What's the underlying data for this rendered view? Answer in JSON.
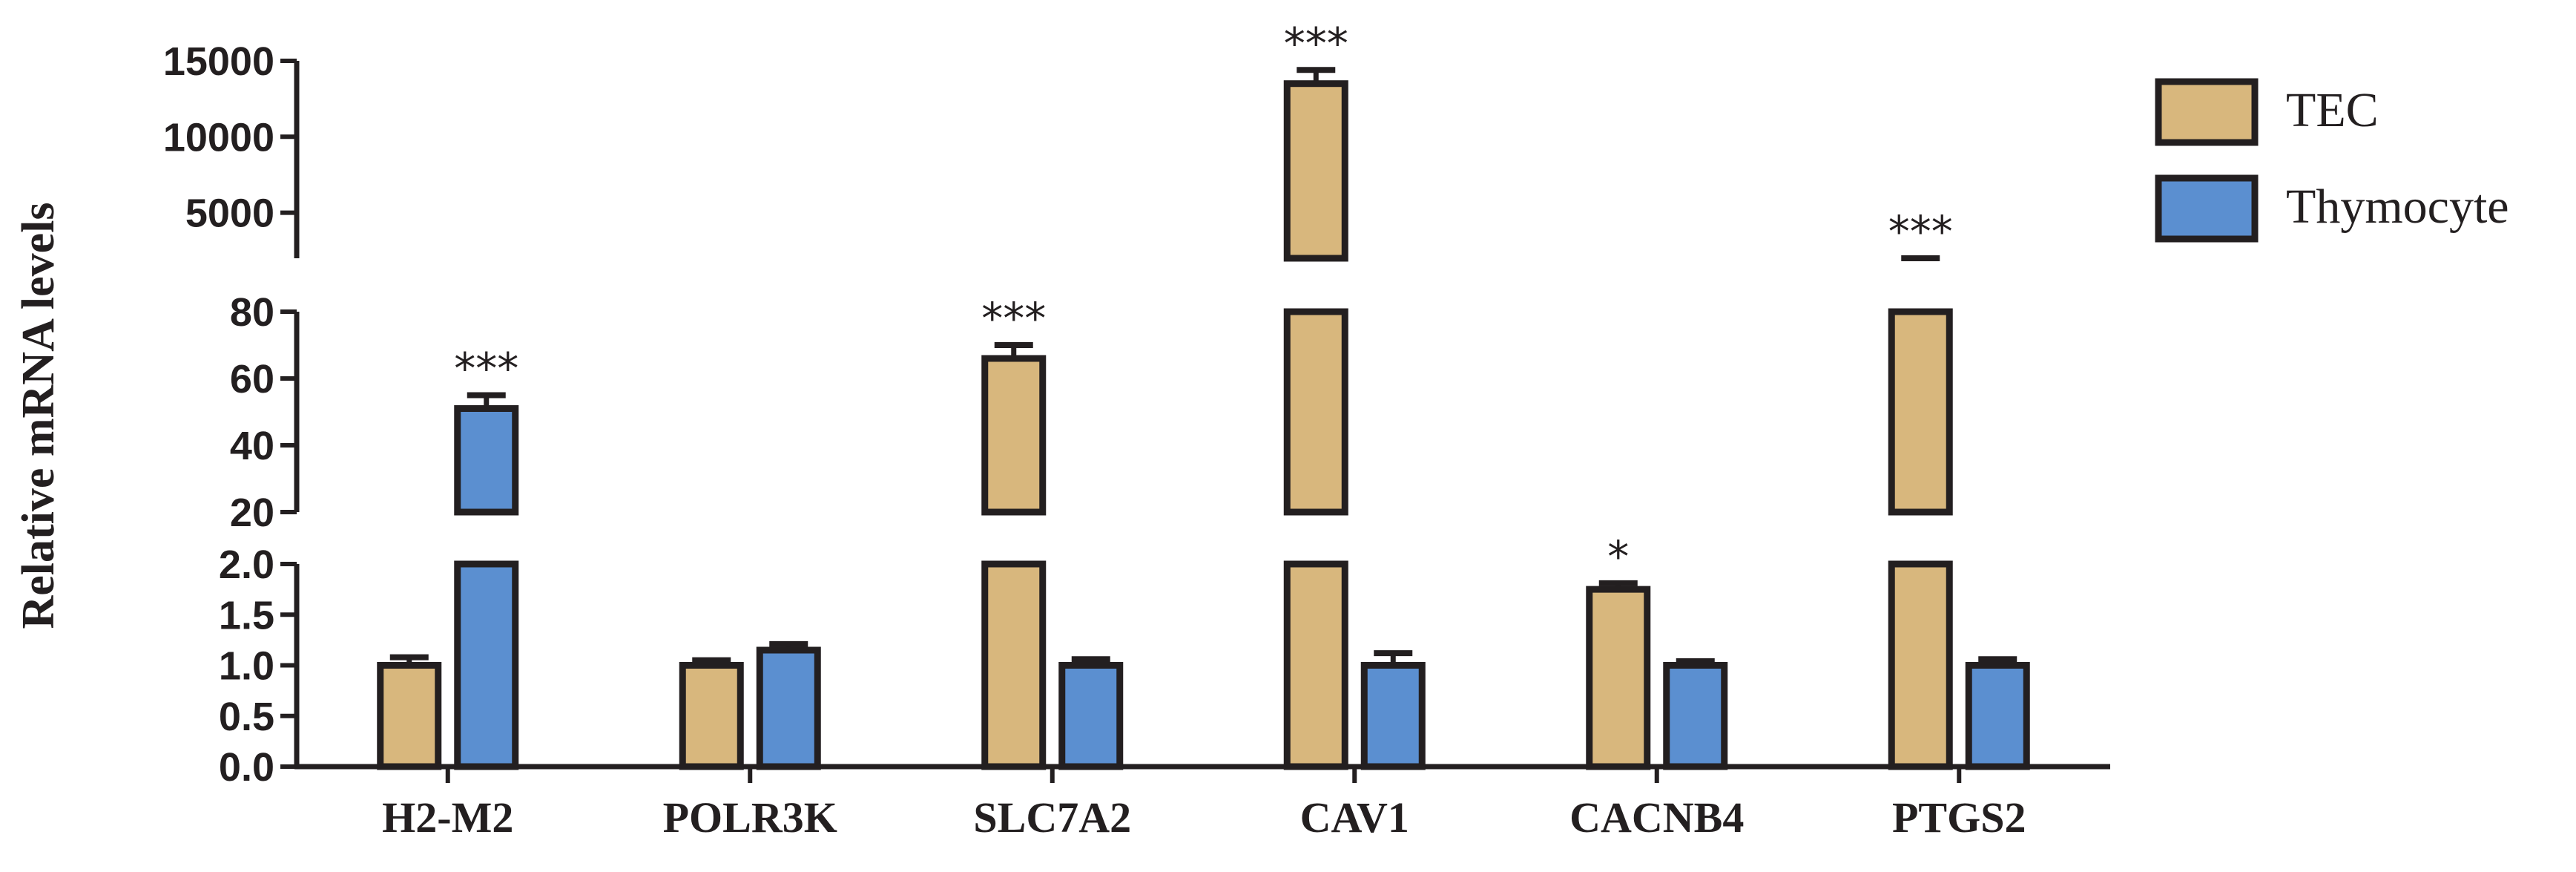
{
  "chart_data": {
    "type": "bar",
    "title": "",
    "ylabel": "Relative mRNA levels",
    "xlabel": "",
    "categories": [
      "H2-M2",
      "POLR3K",
      "SLC7A2",
      "CAV1",
      "CACNB4",
      "PTGS2"
    ],
    "series": [
      {
        "name": "TEC",
        "color": "#d8b77d",
        "values": [
          1.0,
          1.0,
          66,
          13500,
          1.75,
          1300
        ],
        "errors": [
          0.08,
          0.05,
          4,
          900,
          0.06,
          300
        ],
        "significance": [
          "",
          "",
          "***",
          "***",
          "*",
          "***"
        ]
      },
      {
        "name": "Thymocyte",
        "color": "#5b8fd0",
        "values": [
          51,
          1.15,
          1.0,
          1.0,
          1.0,
          1.0
        ],
        "errors": [
          4,
          0.06,
          0.06,
          0.12,
          0.04,
          0.06
        ],
        "significance": [
          "***",
          "",
          "",
          "",
          "",
          ""
        ]
      }
    ],
    "y_axis_segments": [
      {
        "range": [
          0,
          2.0
        ],
        "ticks": [
          0.0,
          0.5,
          1.0,
          1.5,
          2.0
        ],
        "tick_labels": [
          "0.0",
          "0.5",
          "1.0",
          "1.5",
          "2.0"
        ]
      },
      {
        "range": [
          20,
          80
        ],
        "ticks": [
          20,
          40,
          60,
          80
        ],
        "tick_labels": [
          "20",
          "40",
          "60",
          "80"
        ]
      },
      {
        "range": [
          2000,
          15000
        ],
        "ticks": [
          5000,
          10000,
          15000
        ],
        "tick_labels": [
          "5000",
          "10000",
          "15000"
        ]
      }
    ],
    "grid": false,
    "legend_position": "top-right",
    "edge_color": "#231f20"
  }
}
